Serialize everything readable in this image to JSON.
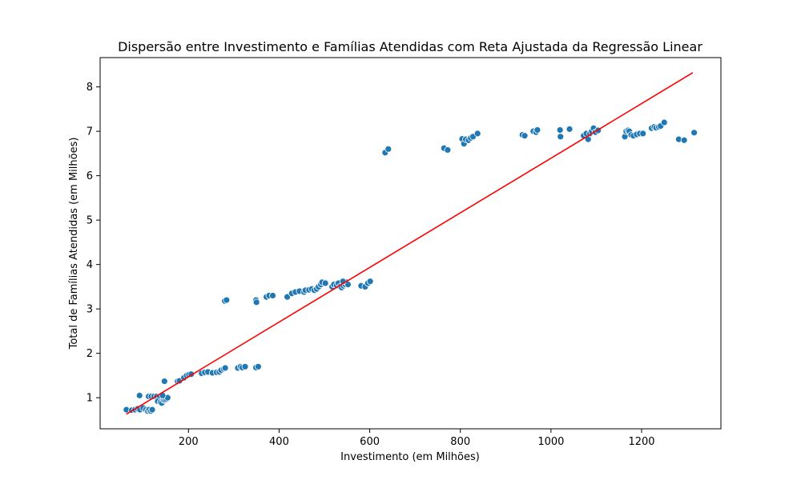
{
  "chart_data": {
    "type": "scatter",
    "title": "Dispersão entre Investimento e Famílias Atendidas com Reta Ajustada da Regressão Linear",
    "xlabel": "Investimento (em Milhões)",
    "ylabel": "Total de Famílias Atendidas (em Milhões)",
    "xlim": [
      5,
      1375
    ],
    "ylim": [
      0.3,
      8.66
    ],
    "xticks": [
      200,
      400,
      600,
      800,
      1000,
      1200
    ],
    "yticks": [
      1,
      2,
      3,
      4,
      5,
      6,
      7,
      8
    ],
    "grid": false,
    "legend": "none",
    "colors": {
      "points": "#1f77b4",
      "regression_line": "#ff0000",
      "point_edge": "#ffffff"
    },
    "regression_line": {
      "x": [
        63,
        1313
      ],
      "y": [
        0.63,
        8.32
      ]
    },
    "series": [
      {
        "points": [
          [
            63,
            0.73
          ],
          [
            75,
            0.72
          ],
          [
            82,
            0.73
          ],
          [
            88,
            0.75
          ],
          [
            93,
            0.73
          ],
          [
            92,
            1.05
          ],
          [
            100,
            0.77
          ],
          [
            106,
            0.73
          ],
          [
            110,
            0.7
          ],
          [
            113,
            0.73
          ],
          [
            117,
            0.7
          ],
          [
            120,
            0.73
          ],
          [
            112,
            1.03
          ],
          [
            118,
            1.03
          ],
          [
            124,
            1.03
          ],
          [
            130,
            1.03
          ],
          [
            136,
            1.02
          ],
          [
            132,
            0.92
          ],
          [
            138,
            0.9
          ],
          [
            141,
            0.88
          ],
          [
            145,
            0.95
          ],
          [
            148,
            0.95
          ],
          [
            151,
            0.97
          ],
          [
            154,
            1.0
          ],
          [
            143,
            1.05
          ],
          [
            147,
            1.37
          ],
          [
            176,
            1.37
          ],
          [
            180,
            1.38
          ],
          [
            190,
            1.45
          ],
          [
            196,
            1.5
          ],
          [
            201,
            1.52
          ],
          [
            206,
            1.53
          ],
          [
            229,
            1.55
          ],
          [
            236,
            1.57
          ],
          [
            243,
            1.58
          ],
          [
            253,
            1.56
          ],
          [
            262,
            1.57
          ],
          [
            268,
            1.58
          ],
          [
            272,
            1.62
          ],
          [
            278,
            1.65
          ],
          [
            281,
            1.67
          ],
          [
            280,
            3.18
          ],
          [
            284,
            3.2
          ],
          [
            309,
            1.67
          ],
          [
            315,
            1.7
          ],
          [
            319,
            1.68
          ],
          [
            325,
            1.7
          ],
          [
            349,
            1.68
          ],
          [
            354,
            1.7
          ],
          [
            349,
            3.2
          ],
          [
            350,
            3.15
          ],
          [
            372,
            3.27
          ],
          [
            378,
            3.3
          ],
          [
            386,
            3.3
          ],
          [
            418,
            3.27
          ],
          [
            428,
            3.35
          ],
          [
            436,
            3.38
          ],
          [
            445,
            3.4
          ],
          [
            455,
            3.38
          ],
          [
            458,
            3.42
          ],
          [
            466,
            3.43
          ],
          [
            472,
            3.45
          ],
          [
            478,
            3.42
          ],
          [
            483,
            3.45
          ],
          [
            487,
            3.5
          ],
          [
            492,
            3.55
          ],
          [
            495,
            3.6
          ],
          [
            502,
            3.58
          ],
          [
            517,
            3.5
          ],
          [
            521,
            3.55
          ],
          [
            527,
            3.53
          ],
          [
            531,
            3.58
          ],
          [
            535,
            3.5
          ],
          [
            538,
            3.48
          ],
          [
            542,
            3.52
          ],
          [
            546,
            3.55
          ],
          [
            549,
            3.6
          ],
          [
            552,
            3.55
          ],
          [
            541,
            3.62
          ],
          [
            581,
            3.52
          ],
          [
            590,
            3.5
          ],
          [
            596,
            3.58
          ],
          [
            601,
            3.62
          ],
          [
            634,
            6.52
          ],
          [
            641,
            6.6
          ],
          [
            764,
            6.62
          ],
          [
            772,
            6.58
          ],
          [
            804,
            6.83
          ],
          [
            808,
            6.72
          ],
          [
            812,
            6.82
          ],
          [
            818,
            6.8
          ],
          [
            823,
            6.85
          ],
          [
            828,
            6.88
          ],
          [
            838,
            6.95
          ],
          [
            937,
            6.92
          ],
          [
            942,
            6.9
          ],
          [
            961,
            7.0
          ],
          [
            967,
            6.98
          ],
          [
            970,
            7.03
          ],
          [
            1020,
            7.03
          ],
          [
            1021,
            6.88
          ],
          [
            1041,
            7.05
          ],
          [
            1072,
            6.9
          ],
          [
            1078,
            6.95
          ],
          [
            1082,
            6.82
          ],
          [
            1086,
            6.95
          ],
          [
            1090,
            7.0
          ],
          [
            1094,
            7.07
          ],
          [
            1098,
            6.98
          ],
          [
            1104,
            7.02
          ],
          [
            1163,
            6.88
          ],
          [
            1166,
            7.0
          ],
          [
            1170,
            7.02
          ],
          [
            1173,
            7.0
          ],
          [
            1177,
            6.92
          ],
          [
            1182,
            6.9
          ],
          [
            1189,
            6.93
          ],
          [
            1196,
            6.95
          ],
          [
            1203,
            6.95
          ],
          [
            1222,
            7.07
          ],
          [
            1228,
            7.1
          ],
          [
            1232,
            7.08
          ],
          [
            1238,
            7.1
          ],
          [
            1242,
            7.12
          ],
          [
            1250,
            7.2
          ],
          [
            1282,
            6.82
          ],
          [
            1294,
            6.8
          ],
          [
            1316,
            6.97
          ]
        ]
      }
    ]
  }
}
